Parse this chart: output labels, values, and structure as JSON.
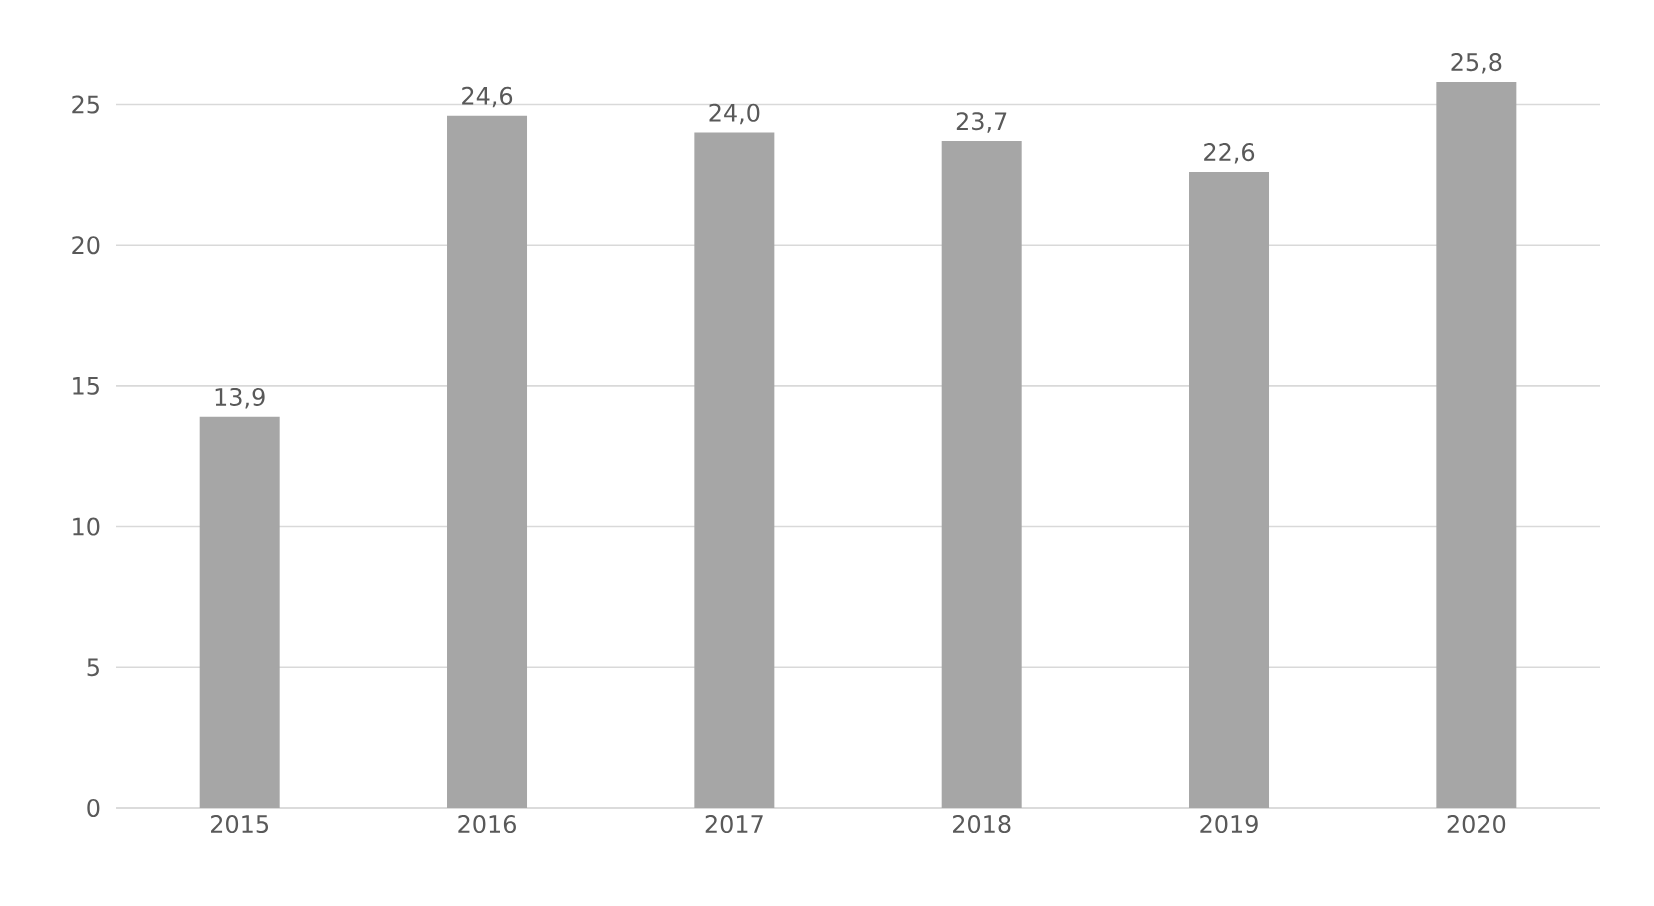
{
  "chart_data": {
    "type": "bar",
    "categories": [
      "2015",
      "2016",
      "2017",
      "2018",
      "2019",
      "2020"
    ],
    "values": [
      13.9,
      24.6,
      24.0,
      23.7,
      22.6,
      25.8
    ],
    "value_labels": [
      "13,9",
      "24,6",
      "24,0",
      "23,7",
      "22,6",
      "25,8"
    ],
    "color": "#a6a6a6",
    "ylim": [
      0,
      25.8
    ],
    "yticks": [
      0,
      5,
      10,
      15,
      20,
      25
    ],
    "grid": "y"
  }
}
